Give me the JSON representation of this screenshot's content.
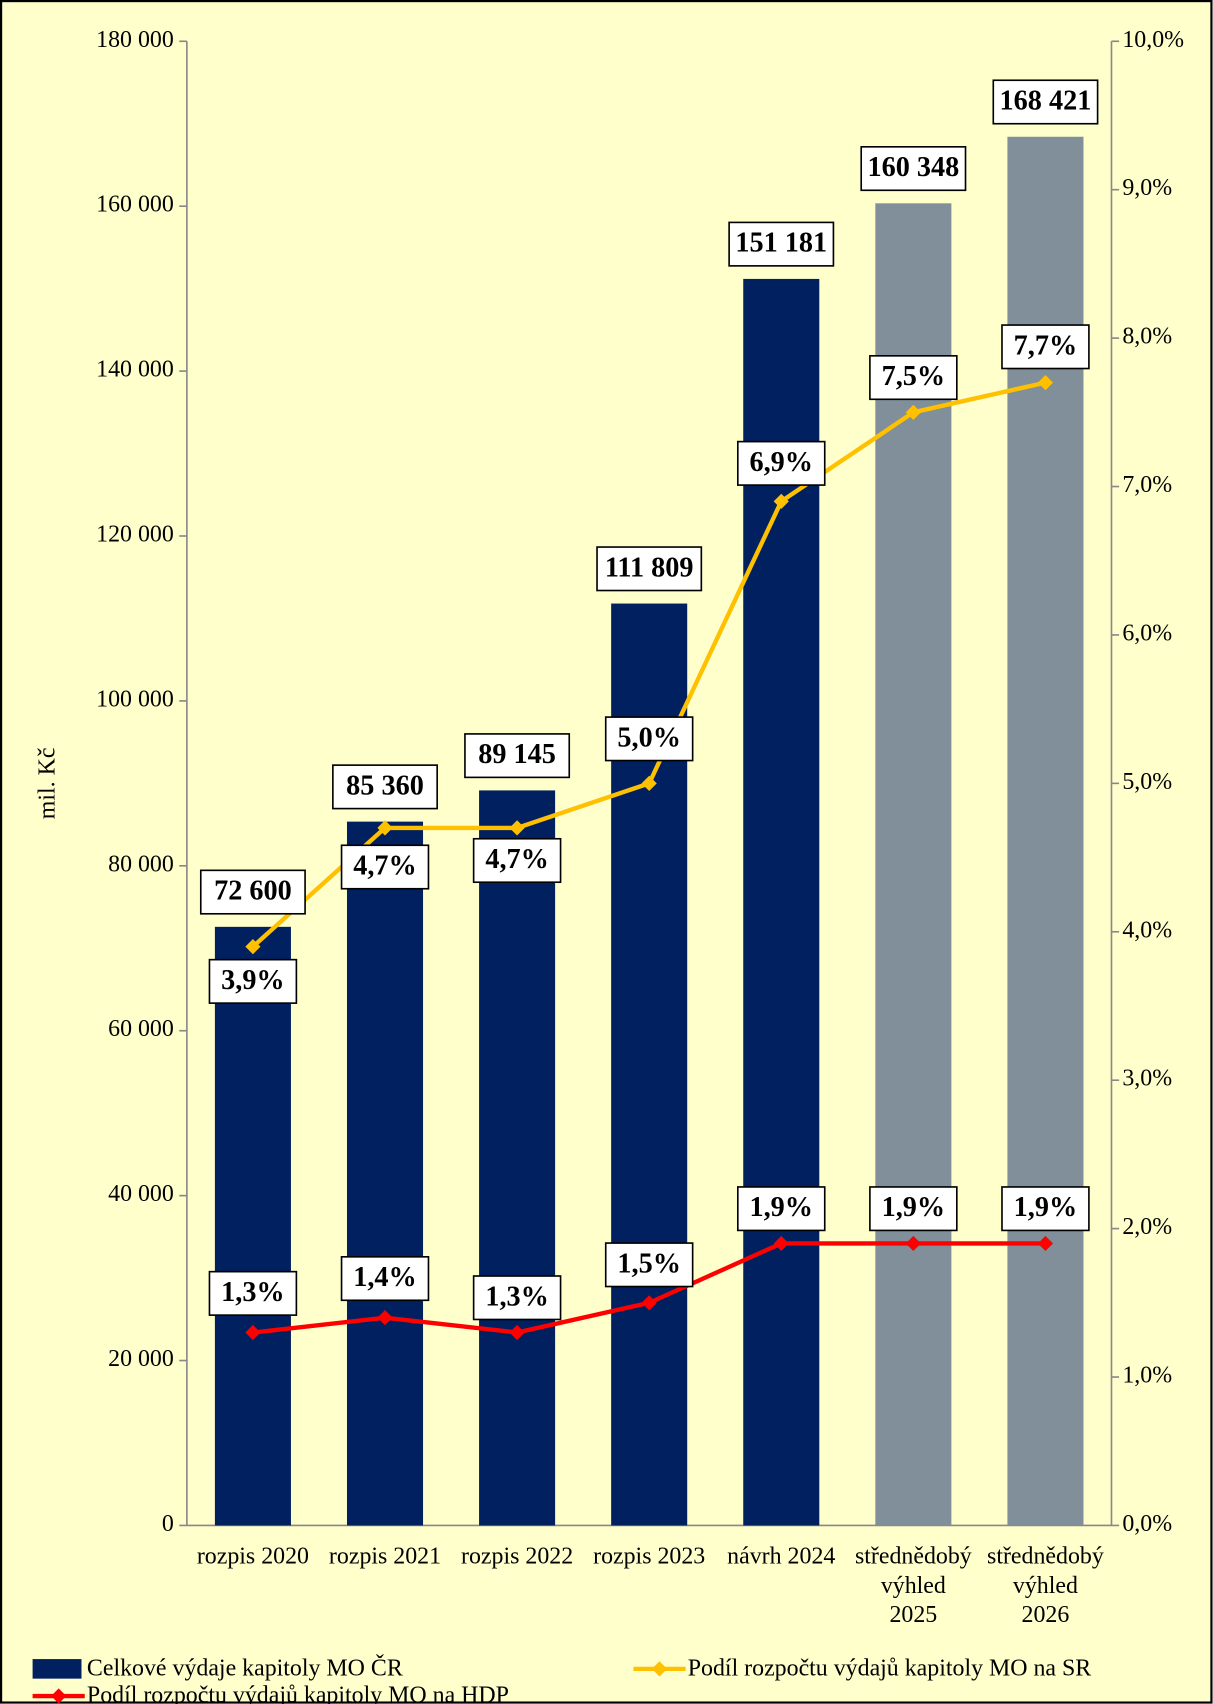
{
  "chart_data": {
    "type": "bar_line",
    "y_label": "mil. Kč",
    "categories": [
      [
        "rozpis 2020"
      ],
      [
        "rozpis 2021"
      ],
      [
        "rozpis 2022"
      ],
      [
        "rozpis 2023"
      ],
      [
        "návrh 2024"
      ],
      [
        "střednědobý",
        "výhled",
        "2025"
      ],
      [
        "střednědobý",
        "výhled",
        "2026"
      ]
    ],
    "series": [
      {
        "name": "Celkové výdaje kapitoly MO ČR",
        "type": "bar",
        "colors": [
          "#002060",
          "#002060",
          "#002060",
          "#002060",
          "#002060",
          "#808f99",
          "#808f99"
        ],
        "values": [
          72600,
          85360,
          89145,
          111809,
          151181,
          160348,
          168421
        ],
        "value_labels": [
          "72 600",
          "85 360",
          "89 145",
          "111 809",
          "151 181",
          "160 348",
          "168 421"
        ]
      },
      {
        "name": "Podíl rozpočtu výdajů kapitoly MO na SR",
        "type": "line",
        "axis": "y2",
        "color": "#ffc000",
        "values": [
          3.9,
          4.7,
          4.7,
          5.0,
          6.9,
          7.5,
          7.7
        ],
        "value_labels": [
          "3,9%",
          "4,7%",
          "4,7%",
          "5,0%",
          "6,9%",
          "7,5%",
          "7,7%"
        ]
      },
      {
        "name": "Podíl rozpočtu výdajů kapitoly MO na HDP",
        "type": "line",
        "axis": "y2",
        "color": "#ff0000",
        "values": [
          1.3,
          1.4,
          1.3,
          1.5,
          1.9,
          1.9,
          1.9
        ],
        "value_labels": [
          "1,3%",
          "1,4%",
          "1,3%",
          "1,5%",
          "1,9%",
          "1,9%",
          "1,9%"
        ]
      }
    ],
    "ylim": [
      0,
      180000
    ],
    "yticks": [
      0,
      {
        "value": 20000,
        "label": "20 000"
      },
      {
        "value": 40000,
        "label": "40 000"
      },
      {
        "value": 60000,
        "label": "60 000"
      },
      {
        "value": 80000,
        "label": "80 000"
      },
      {
        "value": 100000,
        "label": "100 000"
      },
      {
        "value": 120000,
        "label": "120 000"
      },
      {
        "value": 140000,
        "label": "140 000"
      },
      {
        "value": 160000,
        "label": "160 000"
      },
      {
        "value": 180000,
        "label": "180 000"
      }
    ],
    "y2lim": [
      0,
      10
    ],
    "y2ticks": [
      {
        "value": 0,
        "label": "0,0%"
      },
      {
        "value": 1,
        "label": "1,0%"
      },
      {
        "value": 2,
        "label": "2,0%"
      },
      {
        "value": 3,
        "label": "3,0%"
      },
      {
        "value": 4,
        "label": "4,0%"
      },
      {
        "value": 5,
        "label": "5,0%"
      },
      {
        "value": 6,
        "label": "6,0%"
      },
      {
        "value": 7,
        "label": "7,0%"
      },
      {
        "value": 8,
        "label": "8,0%"
      },
      {
        "value": 9,
        "label": "9,0%"
      },
      {
        "value": 10,
        "label": "10,0%"
      }
    ],
    "background": "#ffffcc"
  }
}
